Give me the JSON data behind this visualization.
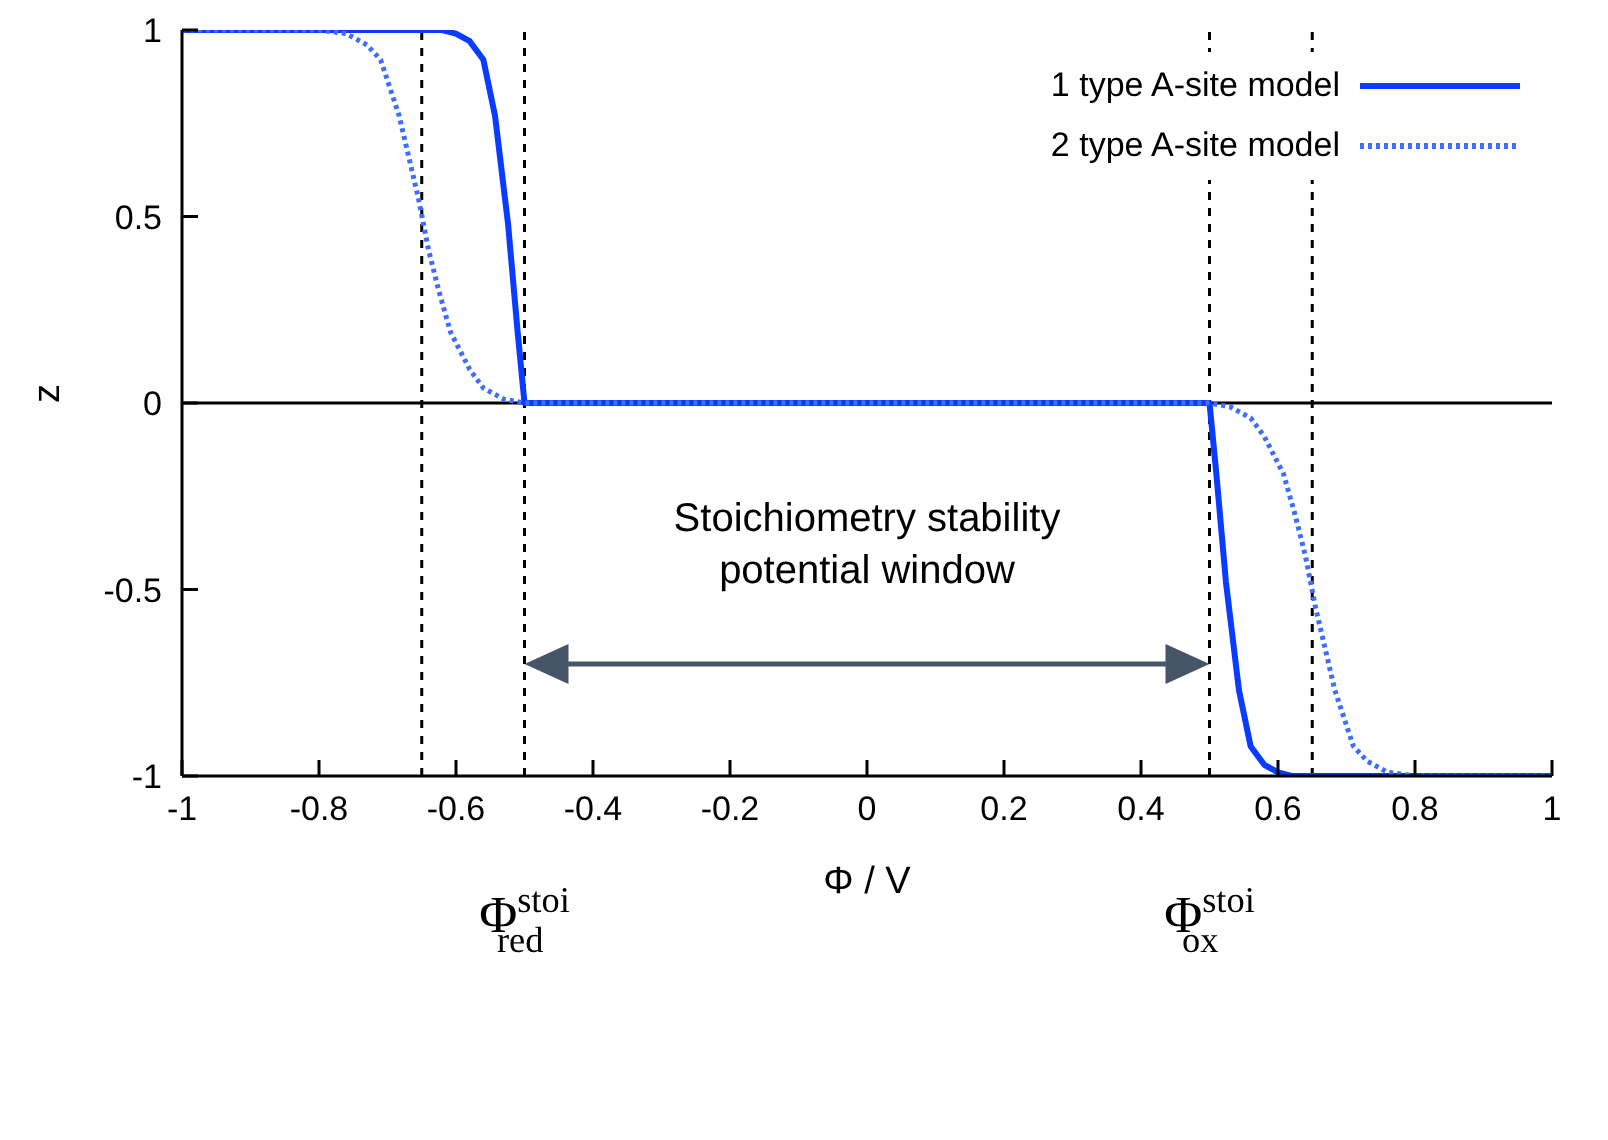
{
  "chart_data": {
    "type": "line",
    "xlabel": "Φ / V",
    "ylabel": "z",
    "xlim": [
      -1,
      1
    ],
    "ylim": [
      -1,
      1
    ],
    "xticks": [
      -1,
      -0.8,
      -0.6,
      -0.4,
      -0.2,
      0,
      0.2,
      0.4,
      0.6,
      0.8,
      1
    ],
    "yticks": [
      -1,
      -0.5,
      0,
      0.5,
      1
    ],
    "legend": "top right",
    "marker": "none",
    "series": [
      {
        "name": "1 type A-site model",
        "color": "#0a3cff",
        "line_style": "solid",
        "x": [
          -1,
          -0.62,
          -0.6,
          -0.58,
          -0.56,
          -0.543,
          -0.524,
          -0.51,
          -0.5,
          0.5,
          0.51,
          0.524,
          0.543,
          0.56,
          0.58,
          0.6,
          0.62,
          1
        ],
        "values": [
          1,
          1,
          0.99,
          0.97,
          0.92,
          0.77,
          0.48,
          0.19,
          0,
          0,
          -0.19,
          -0.48,
          -0.77,
          -0.92,
          -0.97,
          -0.99,
          -1,
          -1
        ]
      },
      {
        "name": "2 type A-site model",
        "color": "#3f6dff",
        "line_style": "dotted",
        "x": [
          -1,
          -0.8,
          -0.76,
          -0.73,
          -0.71,
          -0.683,
          -0.655,
          -0.64,
          -0.625,
          -0.608,
          -0.58,
          -0.56,
          -0.53,
          -0.5,
          0.5,
          0.53,
          0.56,
          0.58,
          0.608,
          0.625,
          0.64,
          0.655,
          0.683,
          0.71,
          0.73,
          0.76,
          0.8,
          1
        ],
        "values": [
          1,
          1,
          0.99,
          0.96,
          0.92,
          0.77,
          0.55,
          0.41,
          0.3,
          0.19,
          0.09,
          0.04,
          0.01,
          0,
          0,
          -0.01,
          -0.04,
          -0.09,
          -0.19,
          -0.3,
          -0.41,
          -0.55,
          -0.77,
          -0.92,
          -0.96,
          -0.99,
          -1,
          -1
        ]
      }
    ],
    "ref_lines": [
      {
        "axis": "y",
        "value": 0,
        "color": "#000000",
        "line_style": "solid"
      },
      {
        "axis": "x",
        "value": -0.65,
        "color": "#000000",
        "line_style": "dashed"
      },
      {
        "axis": "x",
        "value": -0.5,
        "color": "#000000",
        "line_style": "dashed",
        "label": "Φ$^{stoi}$$_{red}$"
      },
      {
        "axis": "x",
        "value": 0.5,
        "color": "#000000",
        "line_style": "dashed",
        "label": "Φ$^{stoi}$$_{ox}$"
      },
      {
        "axis": "x",
        "value": 0.65,
        "color": "#000000",
        "line_style": "dashed"
      }
    ],
    "annotations": [
      "Stoichiometry stability potential window"
    ]
  }
}
